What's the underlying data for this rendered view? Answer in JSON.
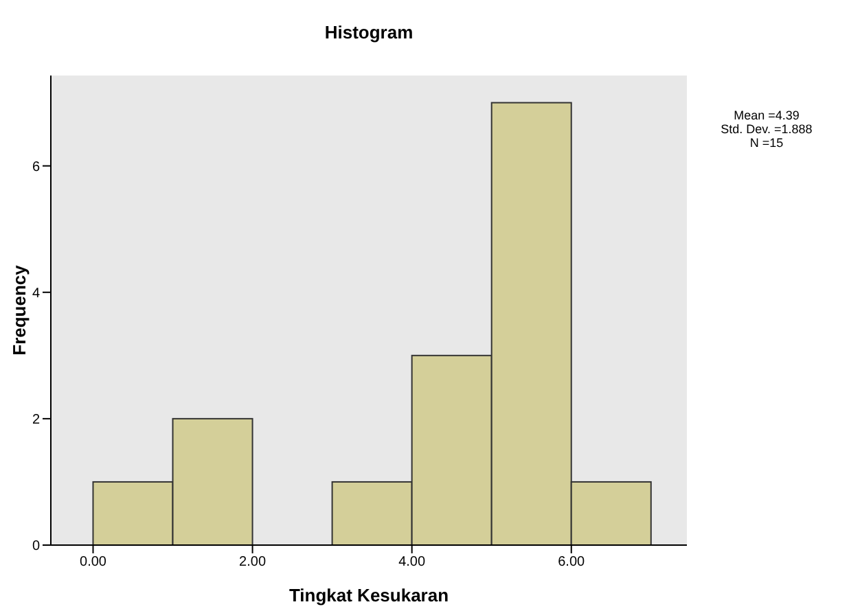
{
  "chart_data": {
    "type": "histogram",
    "title": "Histogram",
    "xlabel": "Tingkat Kesukaran",
    "ylabel": "Frequency",
    "bins": [
      0,
      1,
      2,
      3,
      4,
      5,
      6,
      7
    ],
    "values": [
      1,
      2,
      0,
      1,
      3,
      7,
      1
    ],
    "color": "#d4cf99",
    "xlim": [
      -0.53,
      7.45
    ],
    "xticks": [
      {
        "value": 0,
        "label": "0.00"
      },
      {
        "value": 2,
        "label": "2.00"
      },
      {
        "value": 4,
        "label": "4.00"
      },
      {
        "value": 6,
        "label": "6.00"
      }
    ],
    "ylim": [
      0,
      7.43
    ],
    "yticks": [
      0,
      2,
      4,
      6
    ],
    "annotations": [
      "Mean =4.39",
      "Std. Dev. =1.888",
      "N =15"
    ]
  }
}
